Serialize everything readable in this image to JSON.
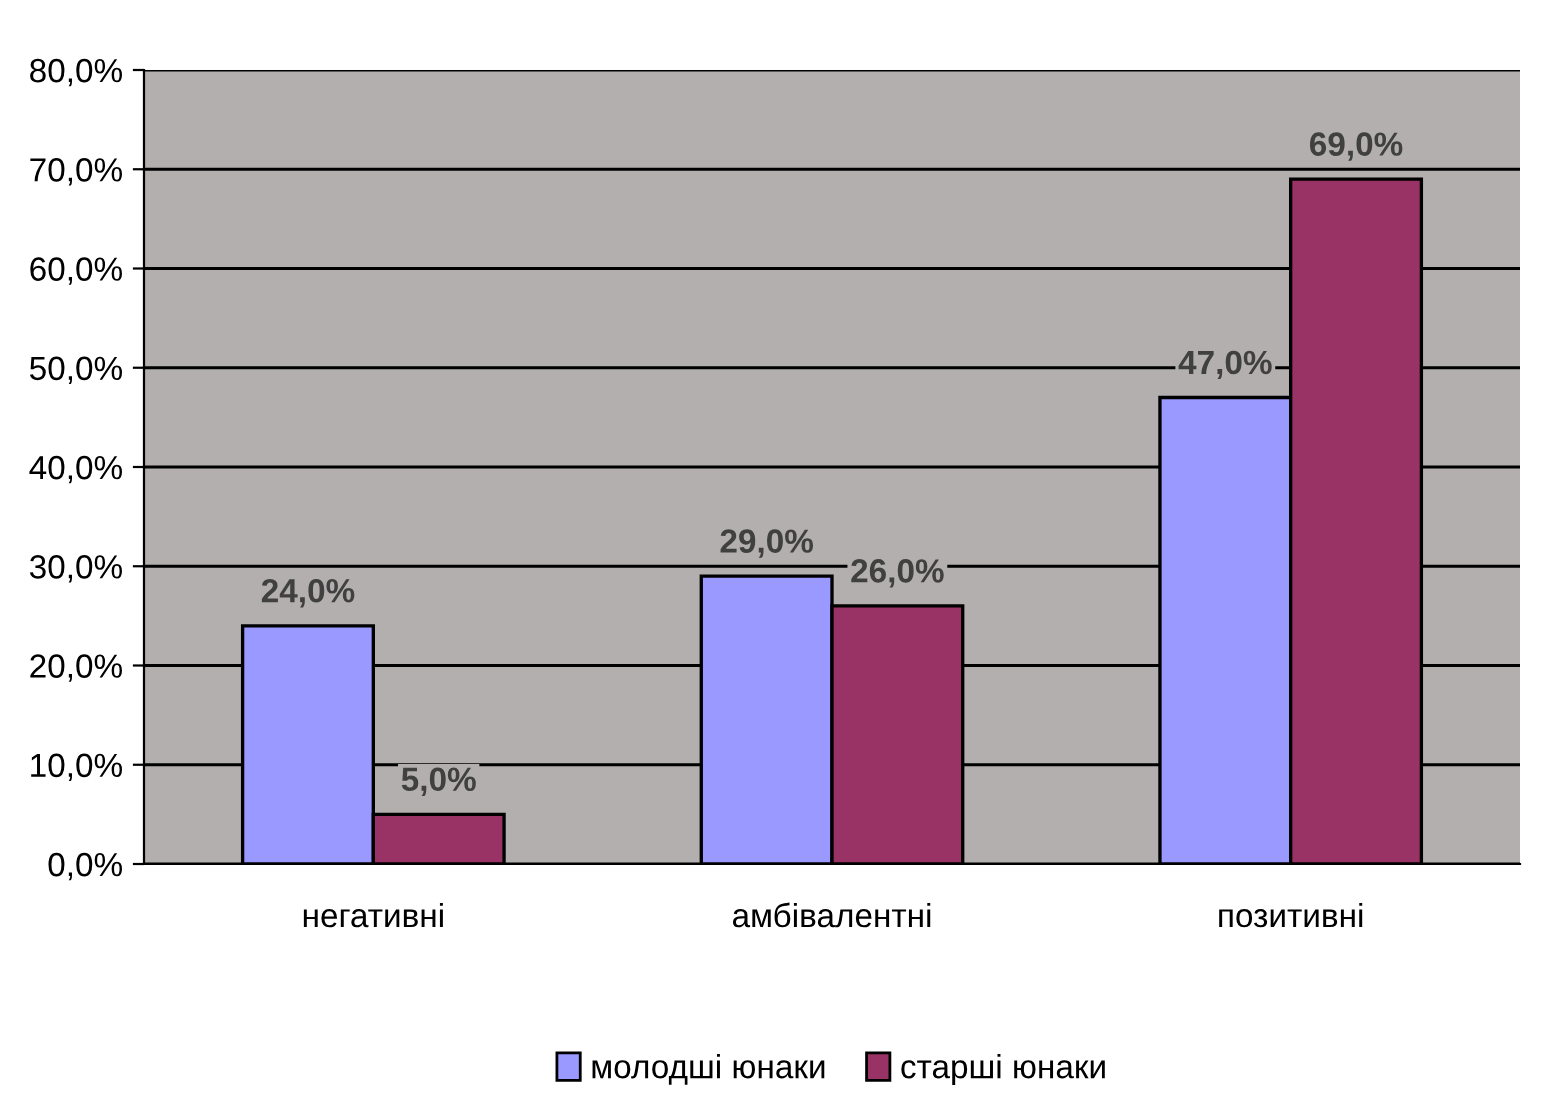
{
  "chart_data": {
    "type": "bar",
    "categories": [
      "негативні",
      "амбівалентні",
      "позитивні"
    ],
    "series": [
      {
        "name": "молодші юнаки",
        "color": "#9999ff",
        "values": [
          24.0,
          29.0,
          47.0
        ],
        "value_labels": [
          "24,0%",
          "29,0%",
          "47,0%"
        ]
      },
      {
        "name": "старші юнаки",
        "color": "#993366",
        "values": [
          5.0,
          26.0,
          69.0
        ],
        "value_labels": [
          "5,0%",
          "26,0%",
          "69,0%"
        ]
      }
    ],
    "ylim": [
      0,
      80
    ],
    "yticks": [
      {
        "value": 0,
        "label": "0,0%"
      },
      {
        "value": 10,
        "label": "10,0%"
      },
      {
        "value": 20,
        "label": "20,0%"
      },
      {
        "value": 30,
        "label": "30,0%"
      },
      {
        "value": 40,
        "label": "40,0%"
      },
      {
        "value": 50,
        "label": "50,0%"
      },
      {
        "value": 60,
        "label": "60,0%"
      },
      {
        "value": 70,
        "label": "70,0%"
      },
      {
        "value": 80,
        "label": "80,0%"
      }
    ],
    "grid": "y",
    "legend": "bottom"
  }
}
